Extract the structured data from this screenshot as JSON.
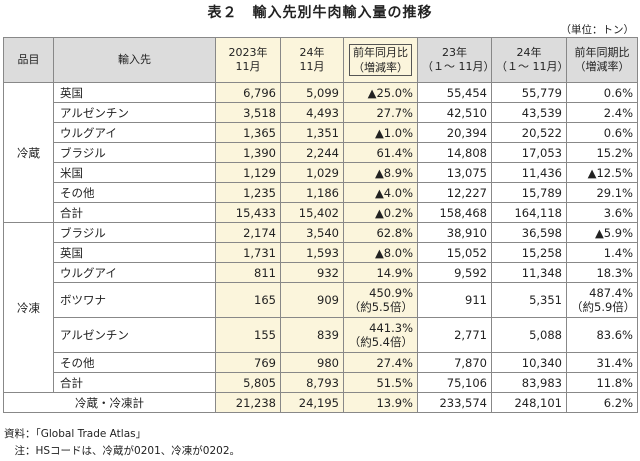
{
  "title": "表２　輸入先別牛肉輸入量の推移",
  "unit": "（単位：トン）",
  "headers": {
    "category": "品目",
    "source": "輸入先",
    "c1": [
      "2023年",
      "11月"
    ],
    "c2": [
      "24年",
      "11月"
    ],
    "c3": [
      "前年同月比",
      "（増減率）"
    ],
    "c4": [
      "23年",
      "（１～ 11月）"
    ],
    "c5": [
      "24年",
      "（１～ 11月）"
    ],
    "c6": [
      "前年同期比",
      "（増減率）"
    ]
  },
  "chilled": {
    "label": "冷蔵",
    "rows": [
      {
        "src": "英国",
        "a": "6,796",
        "b": "5,099",
        "c": "▲25.0%",
        "d": "55,454",
        "e": "55,779",
        "f": "0.6%"
      },
      {
        "src": "アルゼンチン",
        "a": "3,518",
        "b": "4,493",
        "c": "27.7%",
        "d": "42,510",
        "e": "43,539",
        "f": "2.4%"
      },
      {
        "src": "ウルグアイ",
        "a": "1,365",
        "b": "1,351",
        "c": "▲1.0%",
        "d": "20,394",
        "e": "20,522",
        "f": "0.6%"
      },
      {
        "src": "ブラジル",
        "a": "1,390",
        "b": "2,244",
        "c": "61.4%",
        "d": "14,808",
        "e": "17,053",
        "f": "15.2%"
      },
      {
        "src": "米国",
        "a": "1,129",
        "b": "1,029",
        "c": "▲8.9%",
        "d": "13,075",
        "e": "11,436",
        "f": "▲12.5%"
      },
      {
        "src": "その他",
        "a": "1,235",
        "b": "1,186",
        "c": "▲4.0%",
        "d": "12,227",
        "e": "15,789",
        "f": "29.1%"
      },
      {
        "src": "合計",
        "a": "15,433",
        "b": "15,402",
        "c": "▲0.2%",
        "d": "158,468",
        "e": "164,118",
        "f": "3.6%"
      }
    ]
  },
  "frozen": {
    "label": "冷凍",
    "rows": [
      {
        "src": "ブラジル",
        "a": "2,174",
        "b": "3,540",
        "c": "62.8%",
        "d": "38,910",
        "e": "36,598",
        "f": "▲5.9%"
      },
      {
        "src": "英国",
        "a": "1,731",
        "b": "1,593",
        "c": "▲8.0%",
        "d": "15,052",
        "e": "15,258",
        "f": "1.4%"
      },
      {
        "src": "ウルグアイ",
        "a": "811",
        "b": "932",
        "c": "14.9%",
        "d": "9,592",
        "e": "11,348",
        "f": "18.3%"
      },
      {
        "src": "ボツワナ",
        "a": "165",
        "b": "909",
        "c": "450.9%",
        "c2": "（約5.5倍）",
        "d": "911",
        "e": "5,351",
        "f": "487.4%",
        "f2": "（約5.9倍）"
      },
      {
        "src": "アルゼンチン",
        "a": "155",
        "b": "839",
        "c": "441.3%",
        "c2": "（約5.4倍）",
        "d": "2,771",
        "e": "5,088",
        "f": "83.6%"
      },
      {
        "src": "その他",
        "a": "769",
        "b": "980",
        "c": "27.4%",
        "d": "7,870",
        "e": "10,340",
        "f": "31.4%"
      },
      {
        "src": "合計",
        "a": "5,805",
        "b": "8,793",
        "c": "51.5%",
        "d": "75,106",
        "e": "83,983",
        "f": "11.8%"
      }
    ]
  },
  "grand_total": {
    "label": "冷蔵・冷凍計",
    "a": "21,238",
    "b": "24,195",
    "c": "13.9%",
    "d": "233,574",
    "e": "248,101",
    "f": "6.2%"
  },
  "notes": {
    "source": "資料：「Global Trade Atlas」",
    "note": "　注：HSコードは、冷蔵が0201、冷凍が0202。"
  }
}
